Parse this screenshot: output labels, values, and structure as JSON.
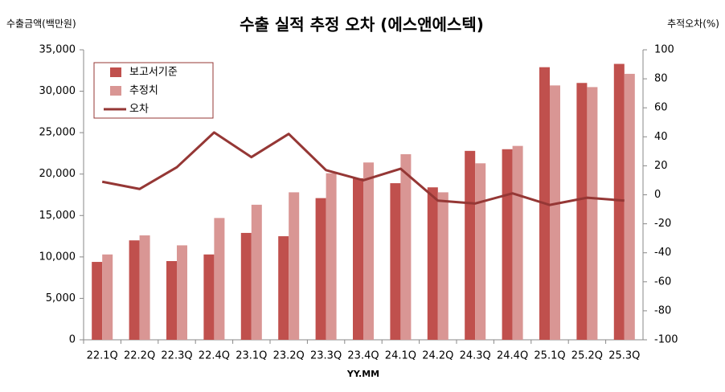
{
  "chart_data": {
    "type": "bar",
    "title": "수출 실적 추정 오차 (에스앤에스텍)",
    "y_label": "수출금액(백만원)",
    "y2_label": "추적오차(%)",
    "x_label": "YY.MM",
    "categories": [
      "22.1Q",
      "22.2Q",
      "22.3Q",
      "22.4Q",
      "23.1Q",
      "23.2Q",
      "23.3Q",
      "23.4Q",
      "24.1Q",
      "24.2Q",
      "24.3Q",
      "24.4Q",
      "25.1Q",
      "25.2Q",
      "25.3Q"
    ],
    "series": [
      {
        "name": "보고서기준",
        "type": "bar",
        "color": "#c0504d",
        "values": [
          9400,
          12000,
          9500,
          10300,
          12900,
          12500,
          17100,
          19500,
          18900,
          18400,
          22800,
          23000,
          32900,
          31000,
          33300
        ]
      },
      {
        "name": "추정치",
        "type": "bar",
        "color": "#d99694",
        "values": [
          10300,
          12600,
          11400,
          14700,
          16300,
          17800,
          20100,
          21400,
          22400,
          17800,
          21300,
          23400,
          30700,
          30500,
          32100
        ]
      },
      {
        "name": "오차",
        "type": "line",
        "axis": "y2",
        "color": "#953735",
        "values": [
          9,
          4,
          19,
          43,
          26,
          42,
          17,
          10,
          18,
          -4,
          -6,
          1,
          -7,
          -2,
          -4
        ]
      }
    ],
    "ylim": [
      0,
      35000
    ],
    "yticks": [
      0,
      {
        "value": 5000,
        "label": "5,000"
      },
      {
        "value": 10000,
        "label": "10,000"
      },
      {
        "value": 15000,
        "label": "15,000"
      },
      {
        "value": 20000,
        "label": "20,000"
      },
      {
        "value": 25000,
        "label": "25,000"
      },
      {
        "value": 30000,
        "label": "30,000"
      },
      {
        "value": 35000,
        "label": "35,000"
      }
    ],
    "y2lim": [
      -100,
      100
    ],
    "y2ticks": [
      -100,
      -80,
      -60,
      -40,
      -20,
      0,
      20,
      40,
      60,
      80,
      100
    ],
    "legend": "upper left"
  }
}
